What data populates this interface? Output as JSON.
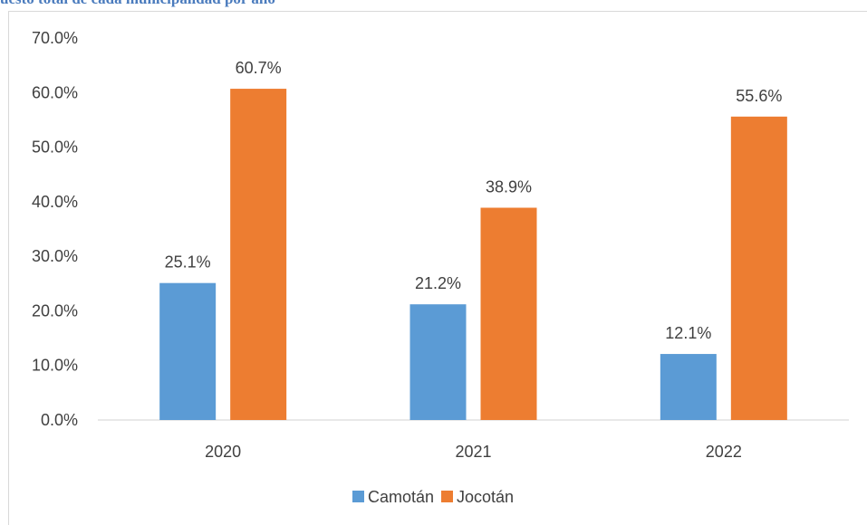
{
  "page": {
    "clipped_title": "uesto total de cada municipalidad por año"
  },
  "chart_data": {
    "type": "bar",
    "title": "",
    "xlabel": "",
    "ylabel": "",
    "categories": [
      "2020",
      "2021",
      "2022"
    ],
    "series": [
      {
        "name": "Camotán",
        "values": [
          25.1,
          21.2,
          12.1
        ],
        "color": "#5b9bd5"
      },
      {
        "name": "Jocotán",
        "values": [
          60.7,
          38.9,
          55.6
        ],
        "color": "#ed7d31"
      }
    ],
    "value_format": "percent_1dp",
    "ylim": [
      0,
      70
    ],
    "yticks": [
      "0.0%",
      "10.0%",
      "20.0%",
      "30.0%",
      "40.0%",
      "50.0%",
      "60.0%",
      "70.0%"
    ],
    "grid": false,
    "legend_position": "bottom"
  }
}
